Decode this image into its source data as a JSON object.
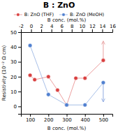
{
  "chart_data": {
    "type": "line",
    "title": "B : ZnO",
    "xlabel": "B conc. (mol.%)",
    "x2label": "B conc. (mol.%)",
    "ylabel": "Resistivity (10⁻² Ω cm)",
    "xlim": [
      50,
      550
    ],
    "xticks": [
      100,
      200,
      300,
      400,
      500
    ],
    "x2lim": [
      -2,
      16
    ],
    "x2ticks": [
      -2,
      0,
      2,
      4,
      6,
      8,
      10,
      12,
      14,
      16
    ],
    "ylim": [
      -5,
      50
    ],
    "yticks": [
      0,
      10,
      20,
      30,
      40,
      50
    ],
    "grid": false,
    "legend": "top",
    "series": [
      {
        "name": "B: ZnO (THF)",
        "color": "#d94040",
        "marker": "circle",
        "x": [
          100,
          125,
          200,
          250,
          300,
          350,
          400,
          500
        ],
        "values": [
          21,
          18,
          20,
          11,
          1,
          19,
          19,
          31
        ]
      },
      {
        "name": "B: ZnO (MeOH)",
        "color": "#5080d0",
        "marker": "circle",
        "x": [
          100,
          200,
          300,
          400,
          500
        ],
        "values": [
          41,
          8,
          1,
          1,
          16
        ]
      }
    ],
    "annotations": [
      {
        "x": 500,
        "from": 31,
        "to": 44,
        "color": "#e8a0a0"
      },
      {
        "x": 500,
        "from": 16,
        "to": 3,
        "color": "#90aae0"
      }
    ]
  }
}
